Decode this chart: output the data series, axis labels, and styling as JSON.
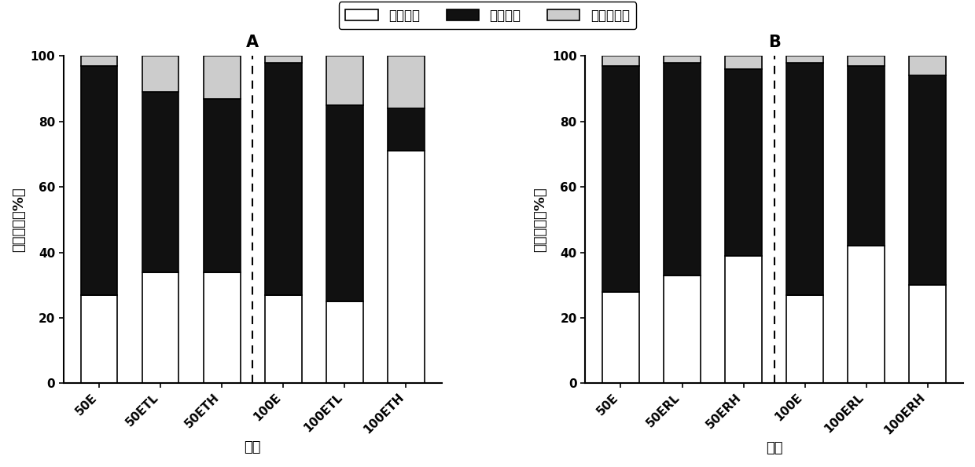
{
  "chart_A": {
    "title": "A",
    "categories": [
      "50E",
      "50ETL",
      "50ETH",
      "100E",
      "100ETL",
      "100ETH"
    ],
    "easy": [
      27,
      34,
      34,
      27,
      25,
      71
    ],
    "hard": [
      70,
      55,
      53,
      71,
      60,
      13
    ],
    "residual": [
      3,
      11,
      13,
      2,
      15,
      16
    ]
  },
  "chart_B": {
    "title": "B",
    "categories": [
      "50E",
      "50ERL",
      "50ERH",
      "100E",
      "100ERL",
      "100ERH"
    ],
    "easy": [
      28,
      33,
      39,
      27,
      42,
      30
    ],
    "hard": [
      69,
      65,
      57,
      71,
      55,
      64
    ],
    "residual": [
      3,
      2,
      4,
      2,
      3,
      6
    ]
  },
  "color_easy": "#ffffff",
  "color_hard": "#111111",
  "color_residual": "#cccccc",
  "edge_color": "#000000",
  "bar_width": 0.6,
  "ylabel": "形态分布（%）",
  "xlabel": "处理",
  "ylim": [
    0,
    100
  ],
  "legend_labels": [
    "易解析态",
    "难解析态",
    "结合残留态"
  ],
  "title_fontsize": 15,
  "tick_fontsize": 11,
  "label_fontsize": 13,
  "legend_fontsize": 12
}
